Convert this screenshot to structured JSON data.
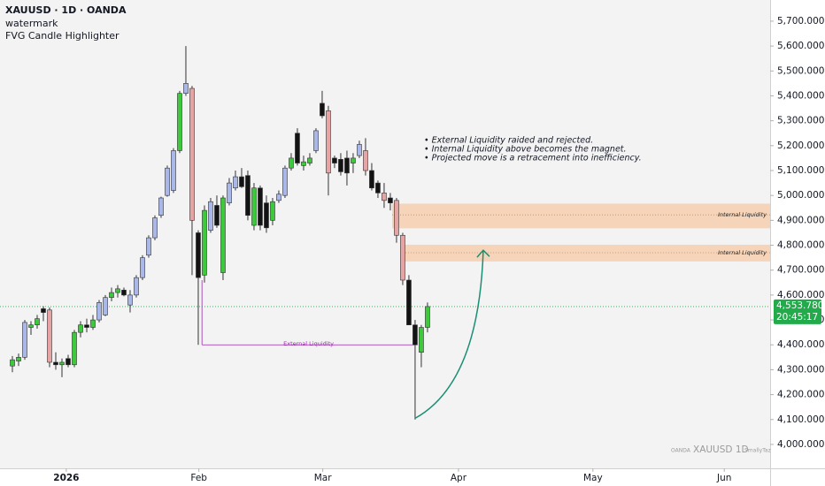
{
  "chart_data": {
    "type": "candlestick",
    "symbol": "XAUUSD · 1D · OANDA",
    "indicators": [
      "watermark",
      "FVG Candle Highlighter"
    ],
    "x": [
      -9,
      -8,
      -7,
      -6,
      -5,
      -4,
      -3,
      -2,
      -1,
      0,
      1,
      2,
      3,
      4,
      5,
      6,
      7,
      8,
      9,
      10,
      11,
      12,
      13,
      14,
      15,
      16,
      17,
      18,
      19,
      20,
      21,
      22,
      23,
      24,
      25,
      26,
      27,
      28,
      29,
      30,
      31,
      32,
      33,
      34,
      35,
      36,
      37,
      38,
      39,
      40,
      41,
      42,
      43,
      44,
      45,
      46,
      47,
      48,
      49,
      50,
      51,
      52,
      53,
      54,
      55,
      56,
      57,
      58
    ],
    "open": [
      4315,
      4335,
      4350,
      4470,
      4480,
      4545,
      4540,
      4330,
      4320,
      4345,
      4320,
      4450,
      4480,
      4470,
      4500,
      4520,
      4590,
      4610,
      4620,
      4560,
      4600,
      4670,
      4760,
      4830,
      4920,
      5000,
      5020,
      5180,
      5410,
      5430,
      4850,
      4680,
      4860,
      4960,
      4690,
      4970,
      5030,
      5075,
      5080,
      4880,
      5030,
      4970,
      4900,
      4980,
      5000,
      5110,
      5250,
      5120,
      5130,
      5180,
      5370,
      5340,
      5150,
      5145,
      5150,
      5130,
      5160,
      5180,
      5100,
      5050,
      5010,
      4990,
      4980,
      4840,
      4660,
      4480,
      4370,
      4470
    ],
    "high": [
      4355,
      4365,
      4500,
      4495,
      4520,
      4555,
      4550,
      4370,
      4345,
      4360,
      4460,
      4495,
      4505,
      4520,
      4580,
      4600,
      4630,
      4640,
      4630,
      4620,
      4680,
      4760,
      4840,
      4920,
      4995,
      5120,
      5190,
      5420,
      5600,
      5440,
      4860,
      4960,
      4990,
      5000,
      5000,
      5070,
      5100,
      5110,
      5100,
      5050,
      5040,
      5000,
      4990,
      5020,
      5120,
      5170,
      5270,
      5160,
      5170,
      5270,
      5420,
      5360,
      5160,
      5170,
      5180,
      5170,
      5220,
      5230,
      5130,
      5060,
      5050,
      5010,
      4990,
      4850,
      4680,
      4500,
      4480,
      4570
    ],
    "low": [
      4290,
      4315,
      4340,
      4440,
      4465,
      4495,
      4310,
      4300,
      4270,
      4310,
      4310,
      4430,
      4450,
      4460,
      4490,
      4515,
      4575,
      4590,
      4595,
      4530,
      4590,
      4660,
      4750,
      4820,
      4910,
      4995,
      5010,
      5170,
      5400,
      4680,
      4400,
      4650,
      4850,
      4870,
      4660,
      4960,
      5020,
      5030,
      4900,
      4860,
      4860,
      4850,
      4880,
      4970,
      4990,
      5100,
      5120,
      5100,
      5120,
      5170,
      5310,
      5000,
      5110,
      5080,
      5040,
      5090,
      5150,
      5080,
      5020,
      4990,
      4950,
      4940,
      4810,
      4640,
      4480,
      4100,
      4310,
      4450
    ],
    "close": [
      4340,
      4350,
      4490,
      4480,
      4505,
      4530,
      4330,
      4320,
      4330,
      4320,
      4450,
      4480,
      4470,
      4500,
      4570,
      4590,
      4610,
      4625,
      4600,
      4600,
      4670,
      4750,
      4830,
      4910,
      4990,
      5110,
      5180,
      5410,
      5450,
      4900,
      4670,
      4940,
      4975,
      4880,
      4990,
      5050,
      5075,
      5035,
      4920,
      5030,
      4880,
      4870,
      4975,
      5005,
      5110,
      5150,
      5130,
      5135,
      5150,
      5260,
      5320,
      5090,
      5130,
      5095,
      5090,
      5150,
      5205,
      5100,
      5030,
      5010,
      4980,
      4970,
      4840,
      4660,
      4480,
      4400,
      4470,
      4553.78
    ],
    "colors": [
      "#3cc93c",
      "#3cc93c",
      "#a9b8e8",
      "#3cc93c",
      "#3cc93c",
      "#131313",
      "#e6a4a4",
      "#131313",
      "#3cc93c",
      "#131313",
      "#3cc93c",
      "#3cc93c",
      "#131313",
      "#3cc93c",
      "#a9b8e8",
      "#a9b8e8",
      "#3cc93c",
      "#3cc93c",
      "#131313",
      "#a9b8e8",
      "#a9b8e8",
      "#a9b8e8",
      "#a9b8e8",
      "#a9b8e8",
      "#a9b8e8",
      "#a9b8e8",
      "#a9b8e8",
      "#3cc93c",
      "#a9b8e8",
      "#e6a4a4",
      "#131313",
      "#3cc93c",
      "#a9b8e8",
      "#131313",
      "#3cc93c",
      "#a9b8e8",
      "#a9b8e8",
      "#131313",
      "#131313",
      "#3cc93c",
      "#131313",
      "#131313",
      "#3cc93c",
      "#a9b8e8",
      "#a9b8e8",
      "#3cc93c",
      "#131313",
      "#3cc93c",
      "#3cc93c",
      "#a9b8e8",
      "#131313",
      "#e6a4a4",
      "#131313",
      "#131313",
      "#131313",
      "#3cc93c",
      "#a9b8e8",
      "#e6a4a4",
      "#131313",
      "#131313",
      "#e6a4a4",
      "#131313",
      "#e6a4a4",
      "#e6a4a4",
      "#131313",
      "#131313",
      "#3cc93c",
      "#3cc93c"
    ],
    "xlim": [
      -11,
      113.3
    ],
    "xticks": [
      {
        "value": -0.3,
        "label": "2026"
      },
      {
        "value": 21.1,
        "label": "Feb"
      },
      {
        "value": 41.1,
        "label": "Mar"
      },
      {
        "value": 63,
        "label": "Apr"
      },
      {
        "value": 84.7,
        "label": "May"
      },
      {
        "value": 105.9,
        "label": "Jun"
      }
    ],
    "ylim": [
      3904,
      5785
    ],
    "yticks": [
      {
        "value": 4000,
        "label": "4,000.000"
      },
      {
        "value": 4100,
        "label": "4,100.000"
      },
      {
        "value": 4200,
        "label": "4,200.000"
      },
      {
        "value": 4300,
        "label": "4,300.000"
      },
      {
        "value": 4400,
        "label": "4,400.000"
      },
      {
        "value": 4500,
        "label": "4,500.000"
      },
      {
        "value": 4600,
        "label": "4,600.000"
      },
      {
        "value": 4700,
        "label": "4,700.000"
      },
      {
        "value": 4800,
        "label": "4,800.000"
      },
      {
        "value": 4900,
        "label": "4,900.000"
      },
      {
        "value": 5000,
        "label": "5,000.000"
      },
      {
        "value": 5100,
        "label": "5,100.000"
      },
      {
        "value": 5200,
        "label": "5,200.000"
      },
      {
        "value": 5300,
        "label": "5,300.000"
      },
      {
        "value": 5400,
        "label": "5,400.000"
      },
      {
        "value": 5500,
        "label": "5,500.000"
      },
      {
        "value": 5600,
        "label": "5,600.000"
      },
      {
        "value": 5700,
        "label": "5,700.000"
      }
    ],
    "last_price": {
      "value": 4553.78,
      "label": "4,553.780",
      "countdown": "20:45:17",
      "color": "#22ab4a"
    },
    "fvg_zones": [
      {
        "x_start": 52.3,
        "top": 4967,
        "bottom": 4868,
        "mid": 4922,
        "label": "Internal Liquidity"
      },
      {
        "x_start": 54,
        "top": 4802,
        "bottom": 4735,
        "mid": 4770,
        "label": "Internal Liquidity"
      }
    ],
    "zone_color": "#f5c9a5",
    "external_liquidity": {
      "label": "External Liquidity",
      "price": 4400,
      "from": 21.6,
      "to": 56,
      "top": 4660,
      "color": "#9c27b0"
    },
    "projection": {
      "from": [
        56,
        4105
      ],
      "to": [
        67,
        4780
      ],
      "color": "#1b8f74"
    },
    "notes": [
      "• External Liquidity raided and rejected.",
      "• Internal Liquidity above becomes the magnet.",
      "• Projected move is a retracement into inefficiency."
    ],
    "watermark": [
      "OANDA",
      "XAUUSD 1D",
      "SmallyTaz"
    ]
  }
}
